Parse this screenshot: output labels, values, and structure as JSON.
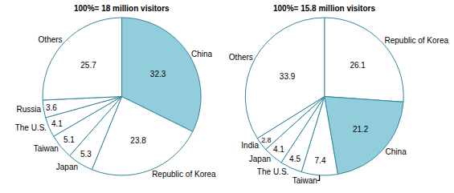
{
  "chart_data": [
    {
      "type": "pie",
      "title": "100%= 18 million visitors",
      "categories": [
        "China",
        "Republic of Korea",
        "Japan",
        "Taiwan",
        "The U.S.",
        "Russia",
        "Others"
      ],
      "values": [
        32.3,
        23.8,
        5.3,
        5.1,
        4.1,
        3.6,
        25.7
      ],
      "colors": [
        "#92cddc",
        "#ffffff",
        "#ffffff",
        "#ffffff",
        "#ffffff",
        "#ffffff",
        "#ffffff"
      ],
      "data_labels": true
    },
    {
      "type": "pie",
      "title": "100%= 15.8 million visitors",
      "categories": [
        "Republic of Korea",
        "China",
        "Taiwan",
        "The U.S.",
        "Japan",
        "India",
        "Others"
      ],
      "values": [
        26.1,
        21.2,
        7.4,
        4.5,
        4.1,
        2.8,
        33.9
      ],
      "colors": [
        "#ffffff",
        "#92cddc",
        "#ffffff",
        "#ffffff",
        "#ffffff",
        "#ffffff",
        "#ffffff"
      ],
      "data_labels": true
    }
  ]
}
